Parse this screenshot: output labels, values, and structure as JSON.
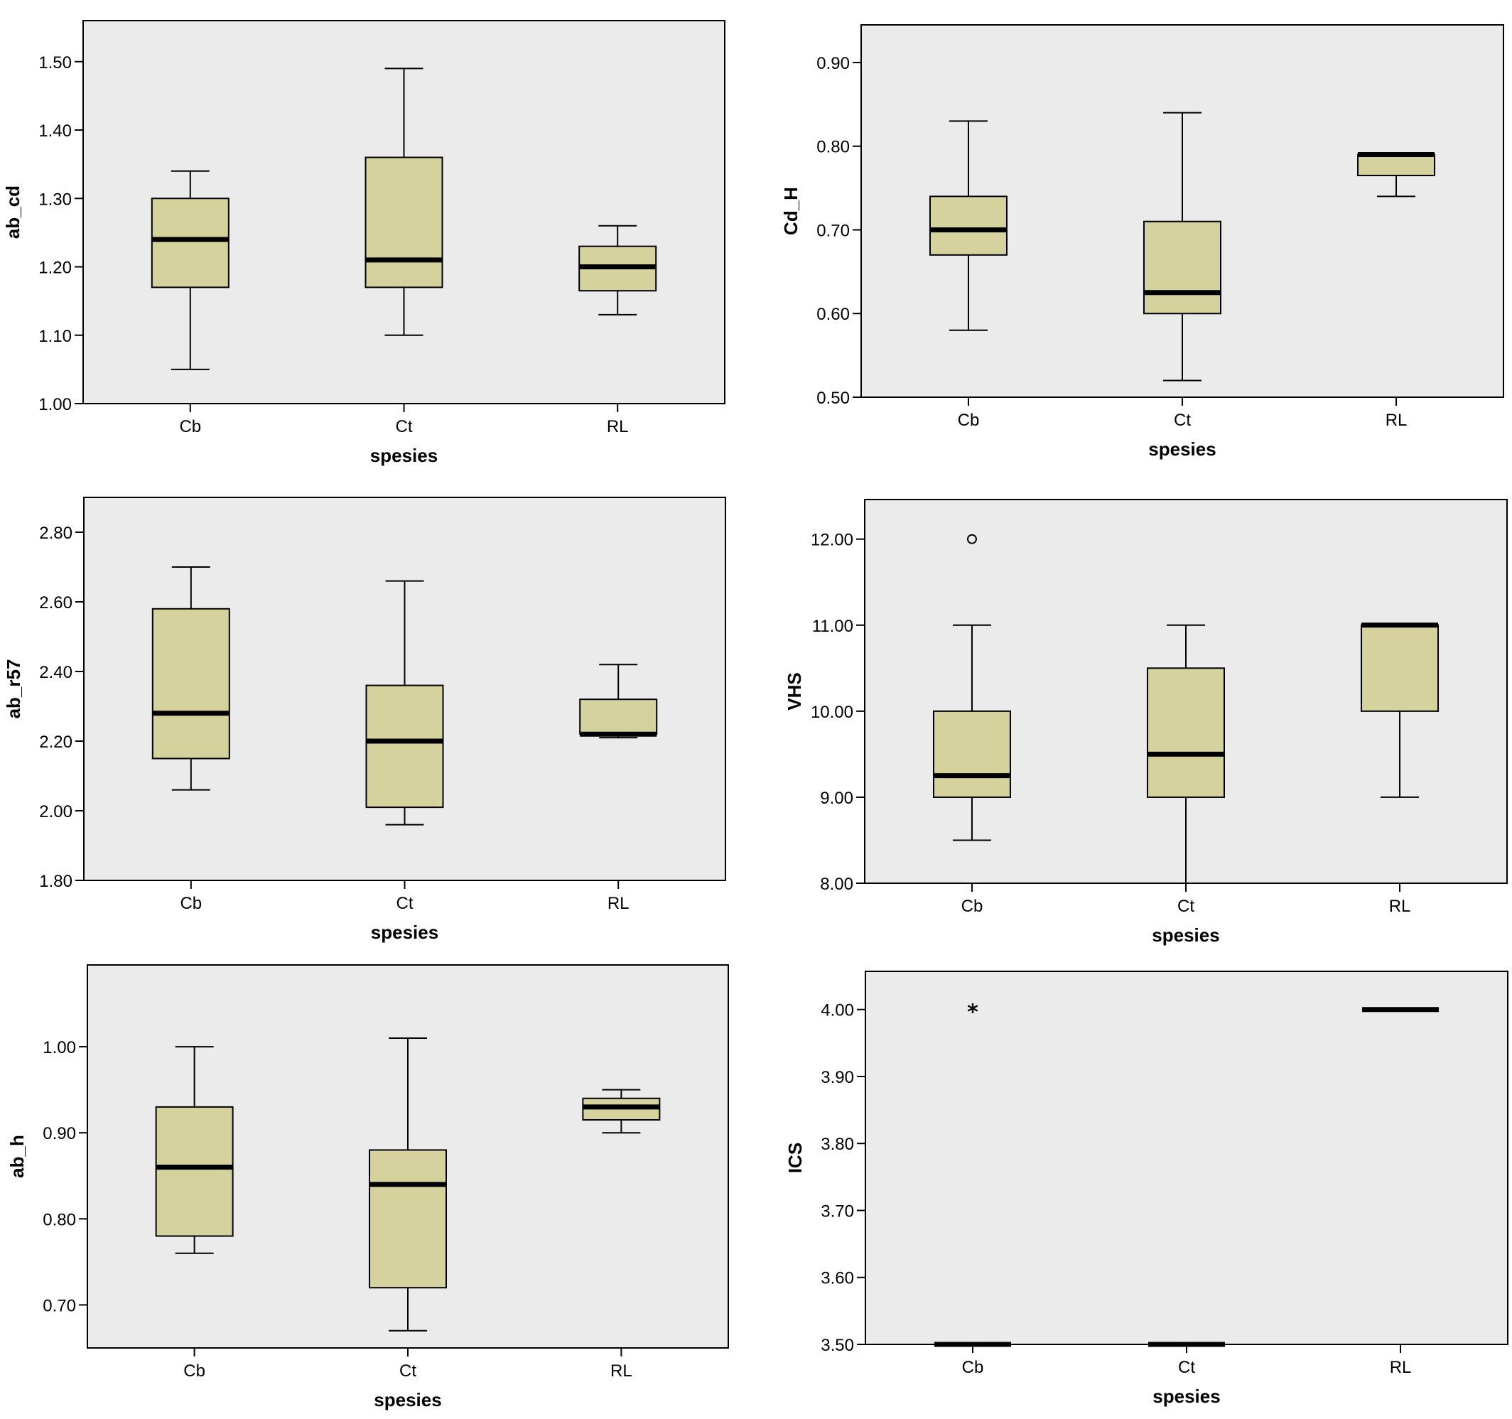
{
  "colors": {
    "plot_background": "#ebebeb",
    "box_fill": "#d6d29e",
    "stroke": "#000000",
    "page_background": "#ffffff"
  },
  "chart_data": [
    {
      "type": "box",
      "title": "",
      "xlabel": "spesies",
      "ylabel": "ab_cd",
      "ylim": [
        1.0,
        1.56
      ],
      "yticks": [
        "1.00",
        "1.10",
        "1.20",
        "1.30",
        "1.40",
        "1.50"
      ],
      "categories": [
        "Cb",
        "Ct",
        "RL"
      ],
      "boxes": [
        {
          "category": "Cb",
          "min": 1.05,
          "q1": 1.17,
          "median": 1.24,
          "q3": 1.3,
          "max": 1.34
        },
        {
          "category": "Ct",
          "min": 1.1,
          "q1": 1.17,
          "median": 1.21,
          "q3": 1.36,
          "max": 1.49
        },
        {
          "category": "RL",
          "min": 1.13,
          "q1": 1.165,
          "median": 1.2,
          "q3": 1.23,
          "max": 1.26
        }
      ],
      "outliers": []
    },
    {
      "type": "box",
      "title": "",
      "xlabel": "spesies",
      "ylabel": "Cd_H",
      "ylim": [
        0.5,
        0.945
      ],
      "yticks": [
        "0.50",
        "0.60",
        "0.70",
        "0.80",
        "0.90"
      ],
      "categories": [
        "Cb",
        "Ct",
        "RL"
      ],
      "boxes": [
        {
          "category": "Cb",
          "min": 0.58,
          "q1": 0.67,
          "median": 0.7,
          "q3": 0.74,
          "max": 0.83
        },
        {
          "category": "Ct",
          "min": 0.52,
          "q1": 0.6,
          "median": 0.625,
          "q3": 0.71,
          "max": 0.84
        },
        {
          "category": "RL",
          "min": 0.74,
          "q1": 0.765,
          "median": 0.79,
          "q3": 0.79,
          "max": 0.79
        }
      ],
      "outliers": []
    },
    {
      "type": "box",
      "title": "",
      "xlabel": "spesies",
      "ylabel": "ab_r57",
      "ylim": [
        1.8,
        2.9
      ],
      "yticks": [
        "1.80",
        "2.00",
        "2.20",
        "2.40",
        "2.60",
        "2.80"
      ],
      "categories": [
        "Cb",
        "Ct",
        "RL"
      ],
      "boxes": [
        {
          "category": "Cb",
          "min": 2.06,
          "q1": 2.15,
          "median": 2.28,
          "q3": 2.58,
          "max": 2.7
        },
        {
          "category": "Ct",
          "min": 1.96,
          "q1": 2.01,
          "median": 2.2,
          "q3": 2.36,
          "max": 2.66
        },
        {
          "category": "RL",
          "min": 2.21,
          "q1": 2.22,
          "median": 2.22,
          "q3": 2.32,
          "max": 2.42
        }
      ],
      "outliers": []
    },
    {
      "type": "box",
      "title": "",
      "xlabel": "spesies",
      "ylabel": "VHS",
      "ylim": [
        8.0,
        12.46
      ],
      "yticks": [
        "8.00",
        "9.00",
        "10.00",
        "11.00",
        "12.00"
      ],
      "categories": [
        "Cb",
        "Ct",
        "RL"
      ],
      "boxes": [
        {
          "category": "Cb",
          "min": 8.5,
          "q1": 9.0,
          "median": 9.25,
          "q3": 10.0,
          "max": 11.0
        },
        {
          "category": "Ct",
          "min": 8.0,
          "q1": 9.0,
          "median": 9.5,
          "q3": 10.5,
          "max": 11.0
        },
        {
          "category": "RL",
          "min": 9.0,
          "q1": 10.0,
          "median": 11.0,
          "q3": 11.0,
          "max": 11.0
        }
      ],
      "outliers": [
        {
          "category": "Cb",
          "value": 12.0,
          "marker": "circle"
        }
      ]
    },
    {
      "type": "box",
      "title": "",
      "xlabel": "spesies",
      "ylabel": "ab_h",
      "ylim": [
        0.65,
        1.095
      ],
      "yticks": [
        "0.70",
        "0.80",
        "0.90",
        "1.00"
      ],
      "categories": [
        "Cb",
        "Ct",
        "RL"
      ],
      "boxes": [
        {
          "category": "Cb",
          "min": 0.76,
          "q1": 0.78,
          "median": 0.86,
          "q3": 0.93,
          "max": 1.0
        },
        {
          "category": "Ct",
          "min": 0.67,
          "q1": 0.72,
          "median": 0.84,
          "q3": 0.88,
          "max": 1.01
        },
        {
          "category": "RL",
          "min": 0.9,
          "q1": 0.915,
          "median": 0.93,
          "q3": 0.94,
          "max": 0.95
        }
      ],
      "outliers": []
    },
    {
      "type": "box",
      "title": "",
      "xlabel": "spesies",
      "ylabel": "ICS",
      "ylim": [
        3.5,
        4.057
      ],
      "yticks": [
        "3.50",
        "3.60",
        "3.70",
        "3.80",
        "3.90",
        "4.00"
      ],
      "categories": [
        "Cb",
        "Ct",
        "RL"
      ],
      "boxes": [
        {
          "category": "Cb",
          "min": 3.5,
          "q1": 3.5,
          "median": 3.5,
          "q3": 3.5,
          "max": 3.5
        },
        {
          "category": "Ct",
          "min": 3.5,
          "q1": 3.5,
          "median": 3.5,
          "q3": 3.5,
          "max": 3.5
        },
        {
          "category": "RL",
          "min": 4.0,
          "q1": 4.0,
          "median": 4.0,
          "q3": 4.0,
          "max": 4.0
        }
      ],
      "outliers": [
        {
          "category": "Cb",
          "value": 4.0,
          "marker": "star"
        }
      ]
    }
  ]
}
